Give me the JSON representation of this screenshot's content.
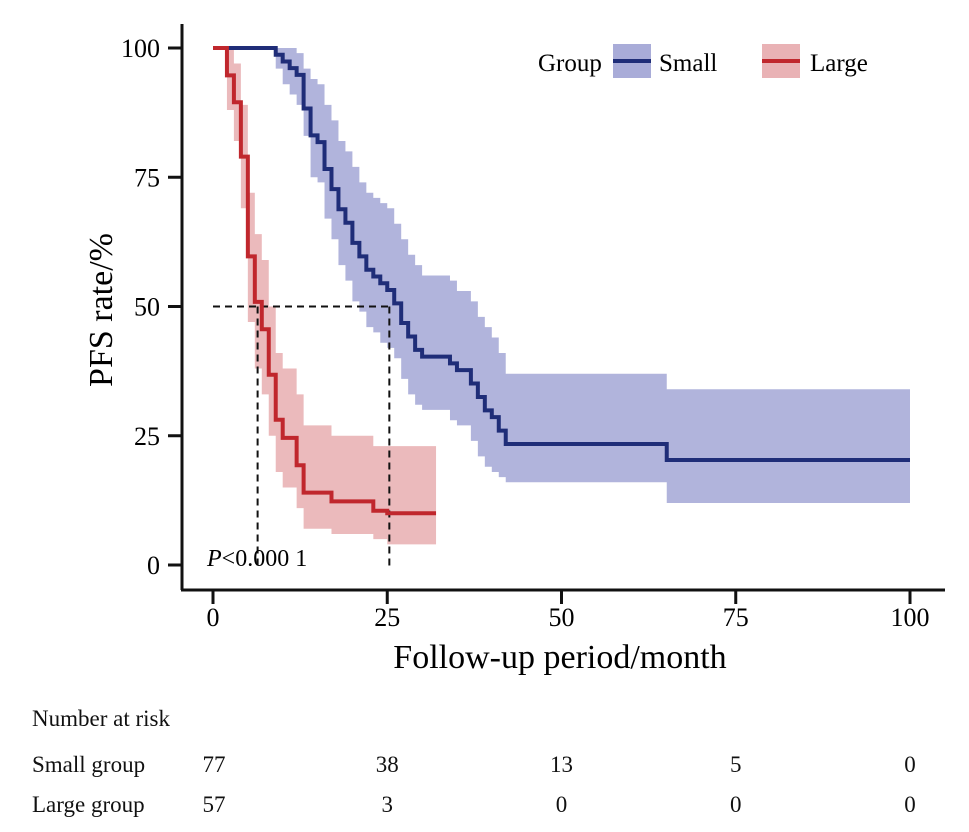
{
  "chart_data": {
    "type": "line",
    "subtype": "kaplan-meier-survival",
    "xlabel": "Follow-up period/month",
    "ylabel": "PFS rate/%",
    "xlim": [
      0,
      100
    ],
    "ylim": [
      0,
      100
    ],
    "xticks": [
      "0",
      "25",
      "50",
      "75",
      "100"
    ],
    "yticks": [
      "0",
      "25",
      "50",
      "75",
      "100"
    ],
    "grid": false,
    "legend": {
      "title": "Group",
      "position": "top-right"
    },
    "annotation": {
      "p_symbol": "P",
      "p_text": "<0.000 1"
    },
    "median_lines": {
      "y": 50,
      "x_values": [
        6.4,
        25.3
      ]
    },
    "series": [
      {
        "name": "Small",
        "color": "#1f2d78",
        "band_color": "#a9acd8",
        "points": [
          [
            0,
            100
          ],
          [
            8,
            100
          ],
          [
            9,
            98.7
          ],
          [
            10,
            97.4
          ],
          [
            11,
            96.1
          ],
          [
            12,
            94.8
          ],
          [
            13,
            88.3
          ],
          [
            14,
            83.1
          ],
          [
            15,
            81.8
          ],
          [
            16,
            76.6
          ],
          [
            17,
            72.7
          ],
          [
            18,
            68.8
          ],
          [
            19,
            66.2
          ],
          [
            20,
            62.3
          ],
          [
            21,
            59.7
          ],
          [
            22,
            57.1
          ],
          [
            23,
            55.8
          ],
          [
            24,
            54.5
          ],
          [
            25,
            53.2
          ],
          [
            26,
            50.6
          ],
          [
            27,
            46.8
          ],
          [
            28,
            44.2
          ],
          [
            29,
            41.6
          ],
          [
            30,
            40.3
          ],
          [
            34,
            39
          ],
          [
            35,
            37.7
          ],
          [
            37,
            35.1
          ],
          [
            38,
            32.5
          ],
          [
            39,
            29.9
          ],
          [
            40,
            28.6
          ],
          [
            41,
            26
          ],
          [
            42,
            23.4
          ],
          [
            65,
            23.4
          ],
          [
            65.1,
            20.3
          ],
          [
            100,
            20.3
          ]
        ],
        "ci_band": [
          [
            0,
            100,
            100
          ],
          [
            8,
            100,
            100
          ],
          [
            9,
            100,
            96
          ],
          [
            10,
            100,
            93
          ],
          [
            11,
            100,
            91
          ],
          [
            12,
            99,
            89
          ],
          [
            13,
            96,
            83
          ],
          [
            14,
            94,
            75
          ],
          [
            15,
            93,
            74
          ],
          [
            16,
            89,
            67
          ],
          [
            17,
            86,
            63
          ],
          [
            18,
            82,
            58
          ],
          [
            19,
            80,
            55
          ],
          [
            20,
            77,
            51
          ],
          [
            21,
            74,
            49
          ],
          [
            22,
            72,
            46
          ],
          [
            23,
            71,
            45
          ],
          [
            24,
            70,
            43
          ],
          [
            25,
            69,
            42
          ],
          [
            26,
            66,
            40
          ],
          [
            27,
            63,
            36
          ],
          [
            28,
            60,
            33
          ],
          [
            29,
            58,
            31
          ],
          [
            30,
            56,
            30
          ],
          [
            34,
            55,
            28
          ],
          [
            35,
            53,
            27
          ],
          [
            37,
            51,
            24
          ],
          [
            38,
            48,
            21
          ],
          [
            39,
            46,
            19
          ],
          [
            40,
            44,
            18
          ],
          [
            41,
            41,
            17
          ],
          [
            42,
            37,
            16
          ],
          [
            65,
            37,
            16
          ],
          [
            65.1,
            34,
            12
          ],
          [
            100,
            34,
            12
          ]
        ]
      },
      {
        "name": "Large",
        "color": "#c0272d",
        "band_color": "#e9b2b5",
        "points": [
          [
            0,
            100
          ],
          [
            1,
            100
          ],
          [
            2,
            94.7
          ],
          [
            3,
            89.5
          ],
          [
            4,
            79
          ],
          [
            5,
            59.7
          ],
          [
            6,
            50.9
          ],
          [
            7,
            45.6
          ],
          [
            8,
            36.8
          ],
          [
            9,
            28.1
          ],
          [
            10,
            24.6
          ],
          [
            12,
            19.3
          ],
          [
            13,
            14
          ],
          [
            17,
            12.3
          ],
          [
            23,
            10.5
          ],
          [
            25,
            10
          ],
          [
            32,
            10
          ]
        ],
        "ci_band": [
          [
            0,
            100,
            100
          ],
          [
            1,
            100,
            100
          ],
          [
            2,
            100,
            88
          ],
          [
            3,
            97,
            82
          ],
          [
            4,
            89,
            69
          ],
          [
            5,
            72,
            47
          ],
          [
            6,
            64,
            38
          ],
          [
            7,
            59,
            33
          ],
          [
            8,
            50,
            25
          ],
          [
            9,
            41,
            18
          ],
          [
            10,
            38,
            15
          ],
          [
            12,
            33,
            11
          ],
          [
            13,
            27,
            7
          ],
          [
            17,
            25,
            6
          ],
          [
            23,
            23,
            5
          ],
          [
            25,
            23,
            4
          ],
          [
            32,
            23,
            4
          ]
        ]
      }
    ]
  },
  "risk_table": {
    "title": "Number at risk",
    "time_points": [
      0,
      25,
      50,
      75,
      100
    ],
    "rows": [
      {
        "label": "Small group",
        "values": [
          "77",
          "38",
          "13",
          "5",
          "0"
        ]
      },
      {
        "label": "Large group",
        "values": [
          "57",
          "3",
          "0",
          "0",
          "0"
        ]
      }
    ]
  }
}
